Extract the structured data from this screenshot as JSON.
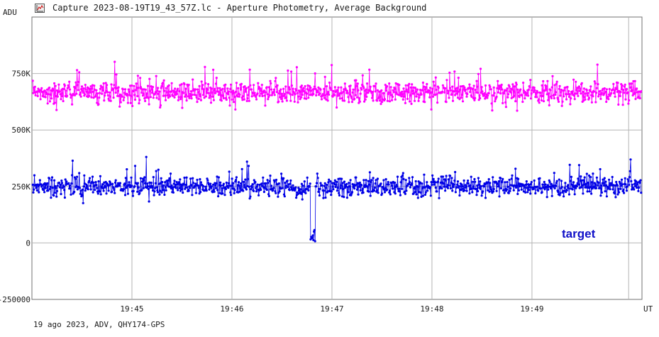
{
  "window": {
    "title": "Capture 2023-08-19T19_43_57Z.lc - Aperture Photometry, Average Background",
    "icon": "chart-window-icon"
  },
  "footer": {
    "info": "19 ago 2023, ADV, QHY174-GPS"
  },
  "chart_data": {
    "type": "line",
    "title": "",
    "ylabel": "ADU",
    "xlabel": "UT",
    "ylim": [
      -250000,
      1000000
    ],
    "xlim": [
      "19:44:00",
      "19:50:06"
    ],
    "y_ticks": [
      {
        "value": 750000,
        "label": "750K"
      },
      {
        "value": 500000,
        "label": "500K"
      },
      {
        "value": 250000,
        "label": "250K"
      },
      {
        "value": 0,
        "label": "0"
      },
      {
        "value": -250000,
        "label": "-250000"
      }
    ],
    "x_ticks": [
      {
        "value": "19:45:00",
        "label": "19:45"
      },
      {
        "value": "19:46:00",
        "label": "19:46"
      },
      {
        "value": "19:47:00",
        "label": "19:47"
      },
      {
        "value": "19:48:00",
        "label": "19:48"
      },
      {
        "value": "19:49:00",
        "label": "19:49"
      }
    ],
    "grid": true,
    "series": [
      {
        "name": "",
        "color": "#ff00ff",
        "mean": 665000,
        "spread": 55000,
        "min": 485000,
        "max": 840000
      },
      {
        "name": "target",
        "color": "#0000e6",
        "mean": 250000,
        "spread": 50000,
        "min": 110000,
        "max": 395000,
        "dip": {
          "start": "19:46:47",
          "end": "19:46:50",
          "min": 0
        }
      }
    ]
  }
}
